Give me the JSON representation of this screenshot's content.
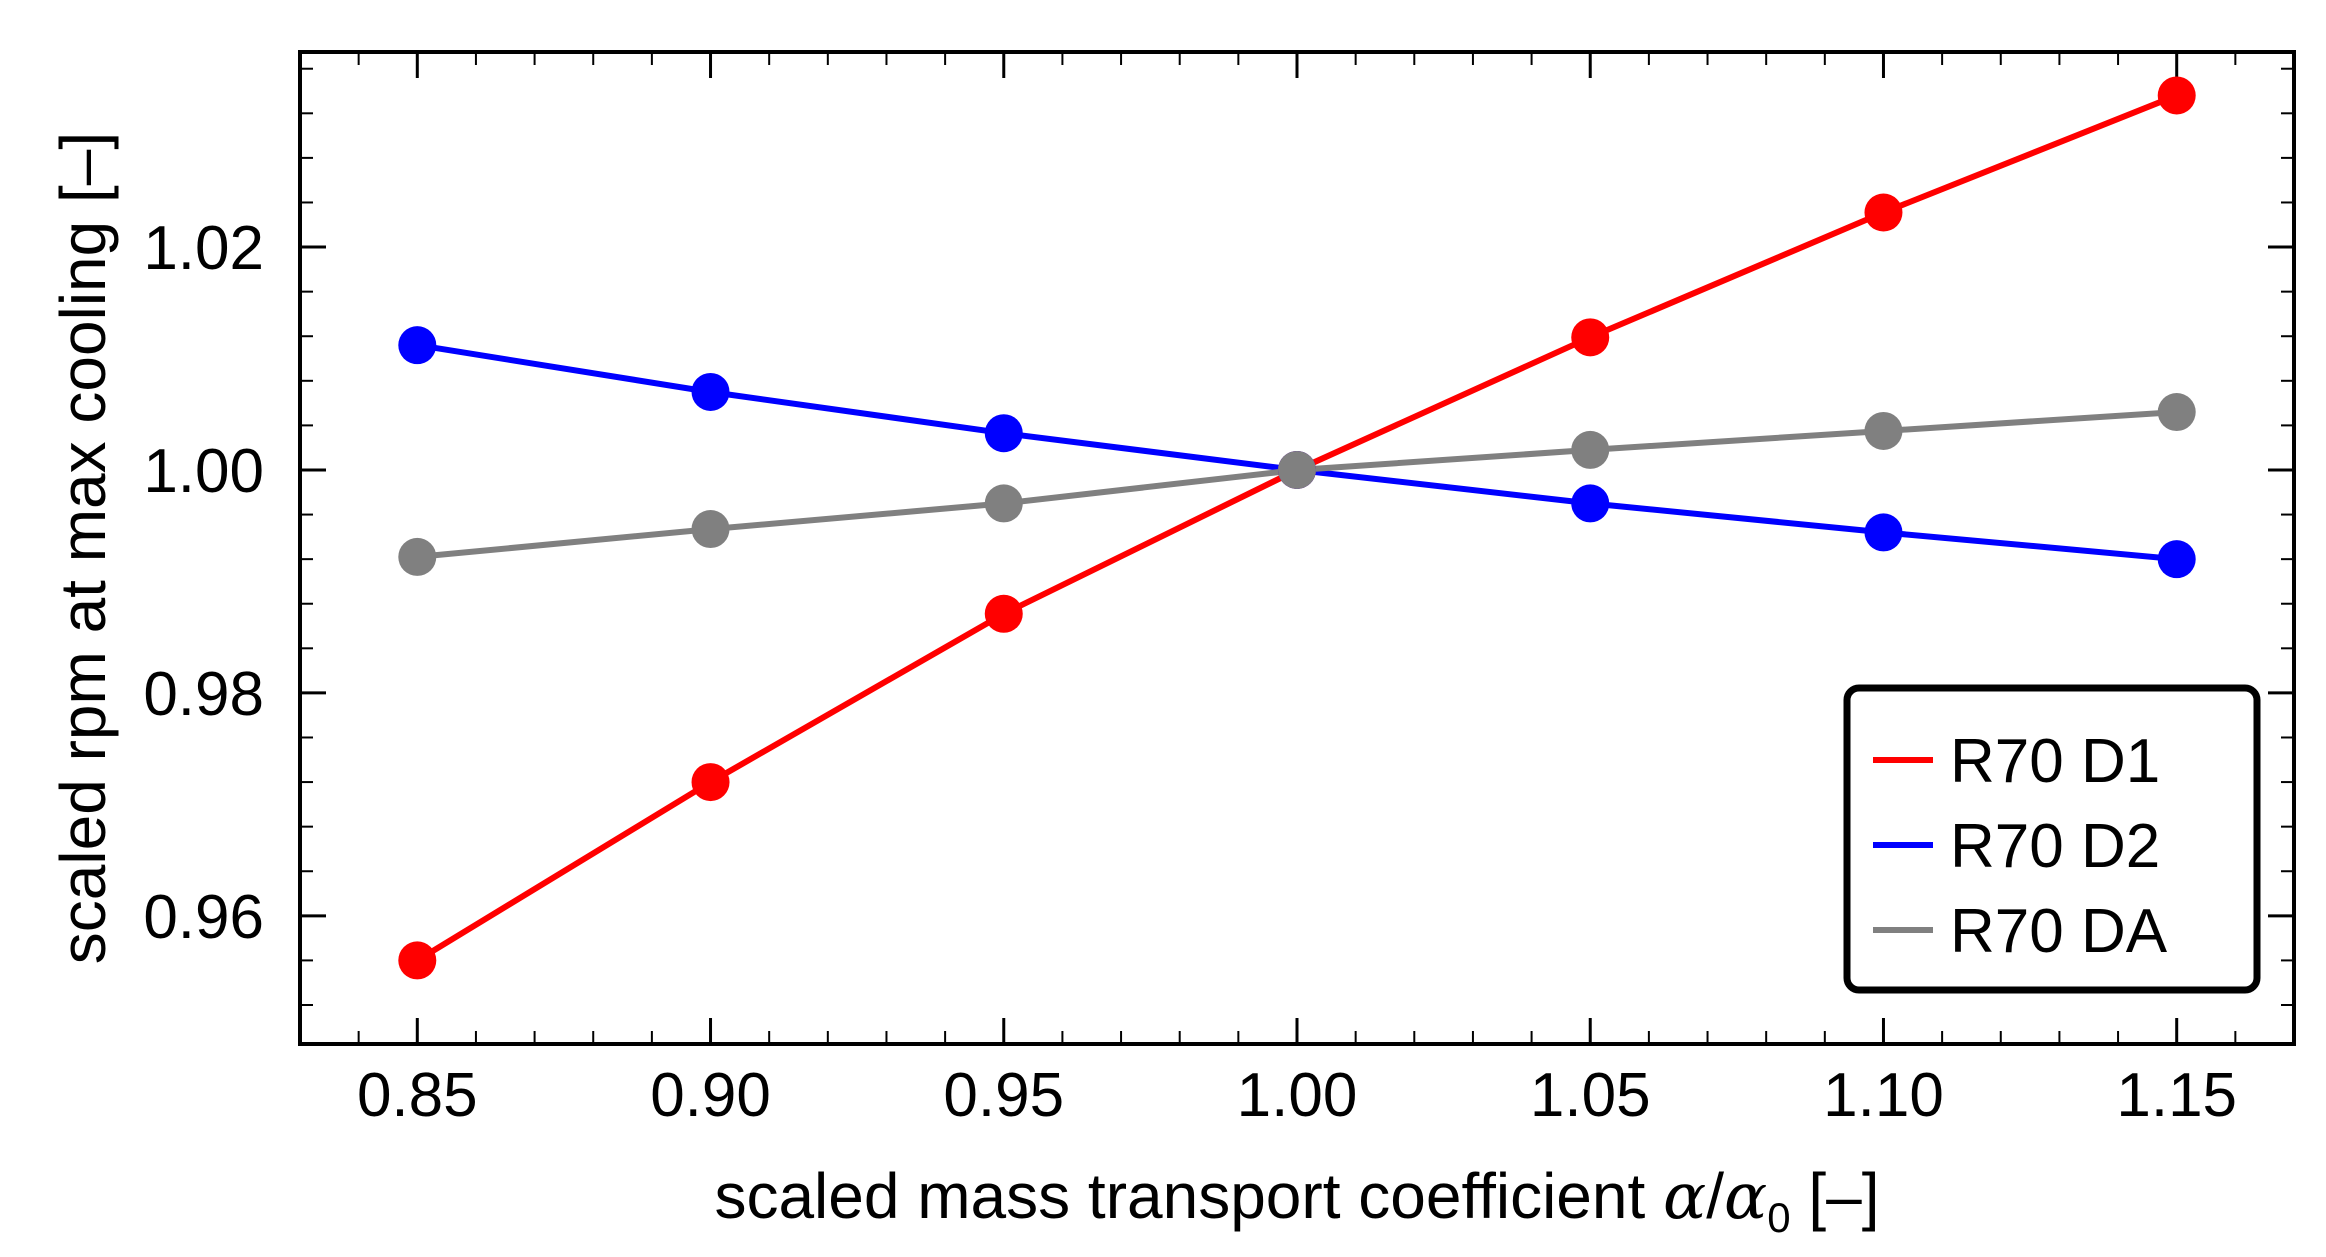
{
  "chart_data": {
    "type": "line",
    "title": "",
    "xlabel": {
      "prefix": "scaled mass transport coefficient ",
      "alpha": "α",
      "slash": "/",
      "alpha0": "α",
      "subscript": "0",
      "suffix": " [–]"
    },
    "ylabel": "scaled rpm at max cooling [–]",
    "xlim": [
      0.83,
      1.17
    ],
    "ylim": [
      0.9485,
      1.0375
    ],
    "x": [
      0.85,
      0.9,
      0.95,
      1.0,
      1.05,
      1.1,
      1.15
    ],
    "xticks": [
      "0.85",
      "0.90",
      "0.95",
      "1.00",
      "1.05",
      "1.10",
      "1.15"
    ],
    "yticks": [
      {
        "value": 0.96,
        "label": "0.96"
      },
      {
        "value": 0.98,
        "label": "0.98"
      },
      {
        "value": 1.0,
        "label": "1.00"
      },
      {
        "value": 1.02,
        "label": "1.02"
      }
    ],
    "series": [
      {
        "name": "R70 D1",
        "color": "#ff0000",
        "values": [
          0.956,
          0.972,
          0.9871,
          1.0,
          1.0119,
          1.0231,
          1.0336
        ]
      },
      {
        "name": "R70 D2",
        "color": "#0000ff",
        "values": [
          1.0112,
          1.007,
          1.0033,
          1.0,
          0.997,
          0.9944,
          0.992
        ]
      },
      {
        "name": "R70 DA",
        "color": "#808080",
        "values": [
          0.9922,
          0.9947,
          0.997,
          1.0,
          1.0018,
          1.0035,
          1.0052
        ]
      }
    ],
    "legend_position": "bottom-right",
    "grid": false
  }
}
